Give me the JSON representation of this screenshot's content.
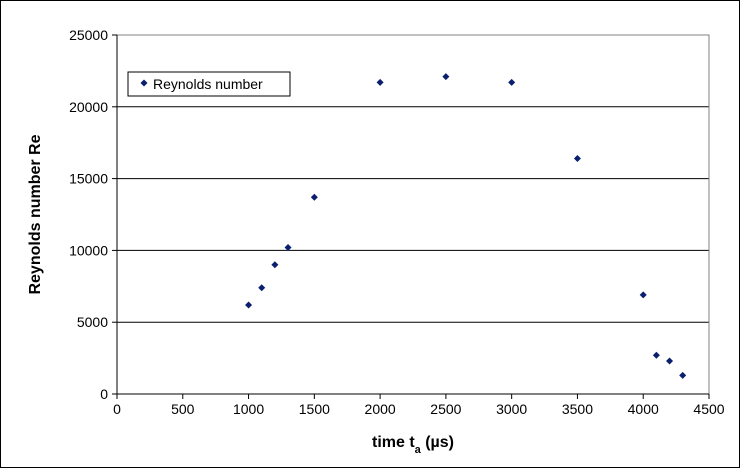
{
  "chart_data": {
    "type": "scatter",
    "title": "",
    "xlabel": {
      "main": "time t",
      "subscript": "a",
      "suffix": " (µs)"
    },
    "ylabel": "Reynolds number Re",
    "xlim": [
      0,
      4500
    ],
    "ylim": [
      0,
      25000
    ],
    "x_ticks": [
      0,
      500,
      1000,
      1500,
      2000,
      2500,
      3000,
      3500,
      4000,
      4500
    ],
    "y_ticks": [
      0,
      5000,
      10000,
      15000,
      20000,
      25000
    ],
    "x_tick_labels": [
      "0",
      "500",
      "1000",
      "1500",
      "2000",
      "2500",
      "3000",
      "3500",
      "4000",
      "4500"
    ],
    "y_tick_labels": [
      "0",
      "5000",
      "10000",
      "15000",
      "20000",
      "25000"
    ],
    "grid": "horizontal",
    "legend": {
      "placement": "top-left",
      "entries": [
        "Reynolds number"
      ]
    },
    "marker_color": "#0a1f6e",
    "series": [
      {
        "name": "Reynolds number",
        "x": [
          1000,
          1100,
          1200,
          1300,
          1500,
          2000,
          2500,
          3000,
          3500,
          4000,
          4100,
          4200,
          4300
        ],
        "y": [
          6200,
          7400,
          9000,
          10200,
          13700,
          21700,
          22100,
          21700,
          16400,
          6900,
          2700,
          2300,
          1300
        ]
      }
    ]
  }
}
